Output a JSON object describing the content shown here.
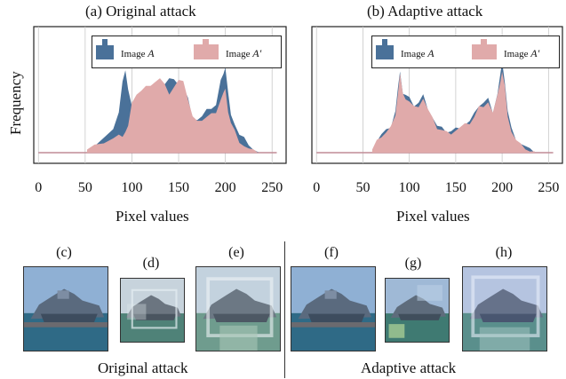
{
  "figure": {
    "panels": [
      {
        "letter": "(a)",
        "title": "Original attack"
      },
      {
        "letter": "(b)",
        "title": "Adaptive attack"
      }
    ],
    "ylabel": "Frequency",
    "xlabel": "Pixel values",
    "legend": {
      "series_a": "Image A",
      "series_a_prefix": "Image",
      "series_a_var": "A",
      "series_b": "Image A′",
      "series_b_prefix": "Image",
      "series_b_var": "A′"
    },
    "xticks": [
      "0",
      "50",
      "100",
      "150",
      "200",
      "250"
    ],
    "bottom_panels": [
      "(c)",
      "(d)",
      "(e)",
      "(f)",
      "(g)",
      "(h)"
    ],
    "captions": {
      "left": "Original attack",
      "right": "Adaptive attack"
    },
    "colors": {
      "image_a": "#4a7199",
      "image_a_prime": "#e0aaaa",
      "grid": "#c8c8c8"
    }
  },
  "chart_data": [
    {
      "type": "area",
      "title": "(a) Original attack",
      "xlabel": "Pixel values",
      "ylabel": "Frequency",
      "xlim": [
        -5,
        265
      ],
      "ylim": [
        0,
        1
      ],
      "grid": true,
      "legend_position": "top-right",
      "series": [
        {
          "name": "Image A",
          "x": [
            52,
            60,
            70,
            80,
            86,
            90,
            93,
            96,
            100,
            105,
            110,
            115,
            120,
            125,
            130,
            135,
            140,
            145,
            150,
            155,
            160,
            165,
            170,
            175,
            180,
            185,
            190,
            195,
            198,
            200,
            203,
            206,
            210,
            215,
            220,
            225,
            230,
            235
          ],
          "y": [
            0.02,
            0.06,
            0.12,
            0.18,
            0.35,
            0.6,
            0.68,
            0.55,
            0.4,
            0.42,
            0.5,
            0.52,
            0.55,
            0.56,
            0.6,
            0.58,
            0.62,
            0.6,
            0.58,
            0.55,
            0.45,
            0.3,
            0.28,
            0.3,
            0.35,
            0.38,
            0.4,
            0.6,
            0.68,
            0.72,
            0.5,
            0.3,
            0.25,
            0.15,
            0.12,
            0.08,
            0.03,
            0.0
          ]
        },
        {
          "name": "Image A′",
          "x": [
            52,
            60,
            70,
            80,
            86,
            90,
            93,
            96,
            100,
            105,
            110,
            115,
            120,
            125,
            130,
            135,
            140,
            145,
            150,
            155,
            160,
            165,
            170,
            175,
            180,
            185,
            190,
            195,
            198,
            200,
            203,
            206,
            210,
            215,
            220,
            225,
            230,
            235
          ],
          "y": [
            0.02,
            0.05,
            0.09,
            0.12,
            0.14,
            0.15,
            0.18,
            0.22,
            0.4,
            0.5,
            0.52,
            0.55,
            0.58,
            0.6,
            0.62,
            0.56,
            0.5,
            0.55,
            0.6,
            0.62,
            0.45,
            0.3,
            0.25,
            0.28,
            0.3,
            0.32,
            0.35,
            0.45,
            0.5,
            0.52,
            0.35,
            0.25,
            0.18,
            0.1,
            0.06,
            0.03,
            0.01,
            0.0
          ]
        }
      ]
    },
    {
      "type": "area",
      "title": "(b) Adaptive attack",
      "xlabel": "Pixel values",
      "xlim": [
        -5,
        265
      ],
      "ylim": [
        0,
        1
      ],
      "grid": true,
      "legend_position": "top-right",
      "series": [
        {
          "name": "Image A",
          "x": [
            60,
            65,
            70,
            75,
            80,
            85,
            88,
            90,
            93,
            96,
            100,
            105,
            110,
            115,
            120,
            125,
            130,
            135,
            140,
            145,
            150,
            155,
            160,
            165,
            170,
            175,
            180,
            185,
            190,
            195,
            198,
            200,
            203,
            206,
            210,
            215,
            220,
            225,
            230,
            235
          ],
          "y": [
            0.02,
            0.1,
            0.15,
            0.18,
            0.22,
            0.35,
            0.55,
            0.7,
            0.5,
            0.48,
            0.45,
            0.4,
            0.42,
            0.48,
            0.38,
            0.3,
            0.22,
            0.2,
            0.18,
            0.18,
            0.2,
            0.22,
            0.24,
            0.26,
            0.32,
            0.4,
            0.42,
            0.45,
            0.35,
            0.5,
            0.65,
            0.75,
            0.6,
            0.35,
            0.2,
            0.12,
            0.08,
            0.05,
            0.02,
            0.0
          ]
        },
        {
          "name": "Image A′",
          "x": [
            60,
            65,
            70,
            75,
            80,
            85,
            88,
            90,
            93,
            96,
            100,
            105,
            110,
            115,
            120,
            125,
            130,
            135,
            140,
            145,
            150,
            155,
            160,
            165,
            170,
            175,
            180,
            185,
            190,
            195,
            198,
            200,
            203,
            206,
            210,
            215,
            220,
            225,
            230,
            235
          ],
          "y": [
            0.02,
            0.09,
            0.14,
            0.17,
            0.21,
            0.33,
            0.52,
            0.66,
            0.48,
            0.46,
            0.43,
            0.38,
            0.4,
            0.46,
            0.36,
            0.28,
            0.21,
            0.19,
            0.17,
            0.17,
            0.19,
            0.21,
            0.23,
            0.25,
            0.3,
            0.38,
            0.4,
            0.43,
            0.33,
            0.47,
            0.6,
            0.68,
            0.55,
            0.32,
            0.18,
            0.1,
            0.06,
            0.04,
            0.01,
            0.0
          ]
        }
      ]
    }
  ]
}
